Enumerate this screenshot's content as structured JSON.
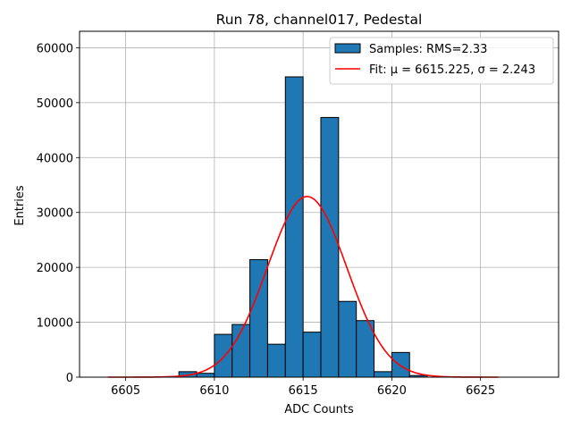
{
  "chart_data": {
    "type": "bar",
    "title": "Run 78, channel017, Pedestal",
    "xlabel": "ADC Counts",
    "ylabel": "Entries",
    "xlim": [
      6602.4,
      6629.4
    ],
    "ylim": [
      0,
      63000
    ],
    "grid": true,
    "xticks": [
      6605,
      6610,
      6615,
      6620,
      6625
    ],
    "yticks": [
      0,
      10000,
      20000,
      30000,
      40000,
      50000,
      60000
    ],
    "bin_width": 1,
    "series": [
      {
        "name": "Samples: RMS=2.33",
        "kind": "histogram",
        "color": "#1f77b4",
        "edgecolor": "#000000",
        "bin_edges": [
          6608,
          6609,
          6610,
          6611,
          6612,
          6613,
          6614,
          6615,
          6616,
          6617,
          6618,
          6619,
          6620,
          6621
        ],
        "values": [
          1000,
          700,
          7800,
          9600,
          21400,
          6000,
          54700,
          8200,
          47300,
          13800,
          10300,
          1000,
          4500,
          300
        ]
      },
      {
        "name": "Fit: μ = 6615.225, σ = 2.243",
        "kind": "gaussian",
        "color": "#ff0000",
        "mu": 6615.225,
        "sigma": 2.243,
        "amplitude": 32900,
        "x_range": [
          6604,
          6626
        ]
      }
    ],
    "legend": {
      "position": "top-right",
      "entries": [
        "Samples: RMS=2.33",
        "Fit: μ = 6615.225, σ = 2.243"
      ]
    }
  }
}
